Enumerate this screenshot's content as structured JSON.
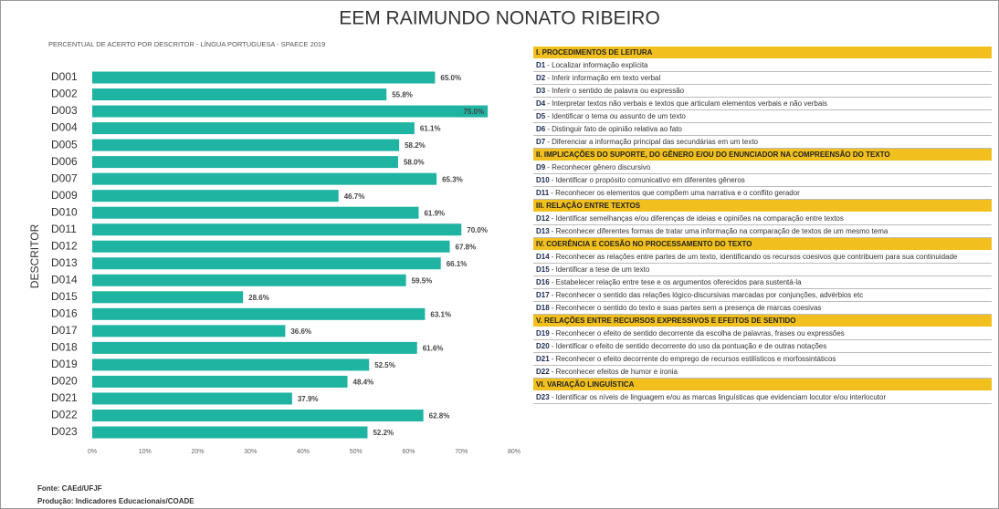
{
  "title": "EEM RAIMUNDO NONATO RIBEIRO",
  "chart_data": {
    "type": "bar",
    "orientation": "horizontal",
    "title": "PERCENTUAL DE ACERTO POR DESCRITOR - LÍNGUA PORTUGUESA - SPAECE 2019",
    "y_label": "DESCRITOR",
    "categories": [
      "D001",
      "D002",
      "D003",
      "D004",
      "D005",
      "D006",
      "D007",
      "D009",
      "D010",
      "D011",
      "D012",
      "D013",
      "D014",
      "D015",
      "D016",
      "D017",
      "D018",
      "D019",
      "D020",
      "D021",
      "D022",
      "D023"
    ],
    "values": [
      65.0,
      55.8,
      75.0,
      61.1,
      58.2,
      58.0,
      65.3,
      46.7,
      61.9,
      70.0,
      67.8,
      66.1,
      59.5,
      28.6,
      63.1,
      36.6,
      61.6,
      52.5,
      48.4,
      37.9,
      62.8,
      52.2
    ],
    "value_labels": [
      "65.0%",
      "55.8%",
      "75.0%",
      "61.1%",
      "58.2%",
      "58.0%",
      "65.3%",
      "46.7%",
      "61.9%",
      "70.0%",
      "67.8%",
      "66.1%",
      "59.5%",
      "28.6%",
      "63.1%",
      "36.6%",
      "61.6%",
      "52.5%",
      "48.4%",
      "37.9%",
      "62.8%",
      "52.2%"
    ],
    "color": "#1fb3a2",
    "xlim": [
      0,
      80
    ],
    "xticks": [
      {
        "value": 0,
        "label": "0%"
      },
      {
        "value": 10,
        "label": "10%"
      },
      {
        "value": 20,
        "label": "20%"
      },
      {
        "value": 30,
        "label": "30%"
      },
      {
        "value": 40,
        "label": "40%"
      },
      {
        "value": 50,
        "label": "50%"
      },
      {
        "value": 60,
        "label": "60%"
      },
      {
        "value": 70,
        "label": "70%"
      },
      {
        "value": 80,
        "label": "80%"
      }
    ],
    "grid": false
  },
  "descriptor_table": {
    "sections": [
      {
        "heading": "I. PROCEDIMENTOS DE LEITURA",
        "items": [
          {
            "code": "D1",
            "text": "- Localizar informação explícita"
          },
          {
            "code": "D2",
            "text": "- Inferir informação em texto verbal"
          },
          {
            "code": "D3",
            "text": "- Inferir o sentido de palavra ou expressão"
          },
          {
            "code": "D4",
            "text": "- Interpretar textos não verbais e textos que articulam elementos verbais e não verbais"
          },
          {
            "code": "D5",
            "text": "- Identificar o tema ou assunto de um texto"
          },
          {
            "code": "D6",
            "text": "- Distinguir fato de opinião relativa ao fato"
          },
          {
            "code": "D7",
            "text": "- Diferenciar a informação principal das secundárias em um texto"
          }
        ]
      },
      {
        "heading": "II. IMPLICAÇÕES DO SUPORTE, DO GÊNERO E/OU DO ENUNCIADOR NA COMPREENSÃO DO TEXTO",
        "items": [
          {
            "code": "D9",
            "text": "- Reconhecer gênero discursivo"
          },
          {
            "code": "D10",
            "text": "- Identificar o propósito comunicativo em diferentes gêneros"
          },
          {
            "code": "D11",
            "text": "- Reconhecer os elementos que compõem uma narrativa e o conflito gerador"
          }
        ]
      },
      {
        "heading": "III. RELAÇÃO ENTRE TEXTOS",
        "items": [
          {
            "code": "D12",
            "text": "- Identificar semelhanças e/ou diferenças de ideias e opiniões na comparação entre textos"
          },
          {
            "code": "D13",
            "text": "- Reconhecer diferentes formas de tratar uma informação na comparação de textos de um mesmo tema"
          }
        ]
      },
      {
        "heading": "IV. COERÊNCIA E COESÃO NO PROCESSAMENTO DO TEXTO",
        "items": [
          {
            "code": "D14",
            "text": "- Reconhecer as relações entre partes de um texto, identificando os recursos coesivos que contribuem para sua continuidade"
          },
          {
            "code": "D15",
            "text": "- Identificar a tese de um texto"
          },
          {
            "code": "D16",
            "text": "- Estabelecer relação entre tese e os argumentos oferecidos para sustentá-la"
          },
          {
            "code": "D17",
            "text": "- Reconhecer o sentido das relações lógico-discursivas marcadas por conjunções, advérbios etc"
          },
          {
            "code": "D18",
            "text": "- Reconhecer o sentido do texto e suas partes sem a presença de marcas coesivas"
          }
        ]
      },
      {
        "heading": "V. RELAÇÕES ENTRE RECURSOS EXPRESSIVOS E EFEITOS DE SENTIDO",
        "items": [
          {
            "code": "D19",
            "text": "- Reconhecer o efeito de sentido decorrente da escolha de palavras, frases ou expressões"
          },
          {
            "code": "D20",
            "text": "- Identificar o efeito de sentido decorrente do uso da pontuação e de outras notações"
          },
          {
            "code": "D21",
            "text": "- Reconhecer o efeito decorrente do emprego de recursos estilísticos e morfossintáticos"
          },
          {
            "code": "D22",
            "text": "- Reconhecer efeitos de humor e ironia"
          }
        ]
      },
      {
        "heading": "VI. VARIAÇÃO LINGUÍSTICA",
        "items": [
          {
            "code": "D23",
            "text": "- Identificar os níveis de linguagem e/ou as marcas linguísticas que evidenciam locutor e/ou interlocutor"
          }
        ]
      }
    ]
  },
  "footer": [
    "Fonte: CAEd/UFJF",
    "Produção: Indicadores Educacionais/COADE"
  ]
}
